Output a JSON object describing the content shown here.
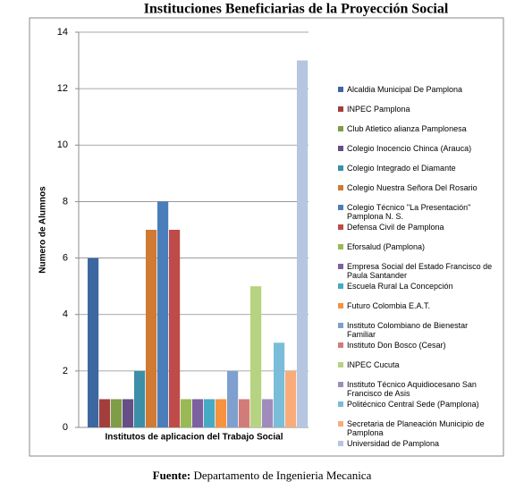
{
  "chart_data": {
    "type": "bar",
    "title": "Instituciones Beneficiarias de la Proyección Social",
    "y_label": "Numero de Alumnos",
    "x_label": "Institutos de aplicacion del Trabajo Social",
    "caption_label": "Fuente:",
    "caption": "Departamento de Ingenieria Mecanica",
    "ylim": [
      0,
      14
    ],
    "yticks": [
      0,
      2,
      4,
      6,
      8,
      10,
      12,
      14
    ],
    "grid": true,
    "series": [
      {
        "name": "Alcaldia Municipal De Pamplona",
        "color": "#3D67A1",
        "values": [
          6
        ]
      },
      {
        "name": "INPEC Pamplona",
        "color": "#A23E3C",
        "values": [
          1
        ]
      },
      {
        "name": "Club Atletico alianza Pamplonesa",
        "color": "#7F9C46",
        "values": [
          1
        ]
      },
      {
        "name": "Colegio Inocencio Chinca (Arauca)",
        "color": "#654F85",
        "values": [
          1
        ]
      },
      {
        "name": "Colegio Integrado el Diamante",
        "color": "#3B8FA6",
        "values": [
          2
        ]
      },
      {
        "name": "Colegio Nuestra Señora Del Rosario",
        "color": "#D07A34",
        "values": [
          7
        ]
      },
      {
        "name": "Colegio Técnico \"La Presentación\" Pamplona N. S.",
        "color": "#4A7EBB",
        "values": [
          8
        ]
      },
      {
        "name": "Defensa Civil de Pamplona",
        "color": "#BE4B48",
        "values": [
          7
        ]
      },
      {
        "name": "Eforsalud (Pamplona)",
        "color": "#98B954",
        "values": [
          1
        ]
      },
      {
        "name": "Empresa Social del Estado Francisco de Paula Santander",
        "color": "#7D60A0",
        "values": [
          1
        ]
      },
      {
        "name": "Escuela Rural La Concepción",
        "color": "#46AAC5",
        "values": [
          1
        ]
      },
      {
        "name": "Futuro Colombia E.A.T.",
        "color": "#F69240",
        "values": [
          1
        ]
      },
      {
        "name": "Instituto Colombiano de Bienestar Familiar",
        "color": "#7F9FCF",
        "values": [
          2
        ]
      },
      {
        "name": "Instituto Don Bosco (Cesar)",
        "color": "#D27C7A",
        "values": [
          1
        ]
      },
      {
        "name": "INPEC Cucuta",
        "color": "#B5D380",
        "values": [
          5
        ]
      },
      {
        "name": "Instituto Técnico Aquidiocesano San Francisco de Asis",
        "color": "#A08CBC",
        "values": [
          1
        ]
      },
      {
        "name": "Politécnico Central Sede (Pamplona)",
        "color": "#79BDD8",
        "values": [
          3
        ]
      },
      {
        "name": "Secretaria de Planeación Municipio de Pamplona",
        "color": "#F9AC7A",
        "values": [
          2
        ]
      },
      {
        "name": "Universidad de Pamplona",
        "color": "#B6C6E0",
        "values": [
          13
        ]
      }
    ]
  }
}
